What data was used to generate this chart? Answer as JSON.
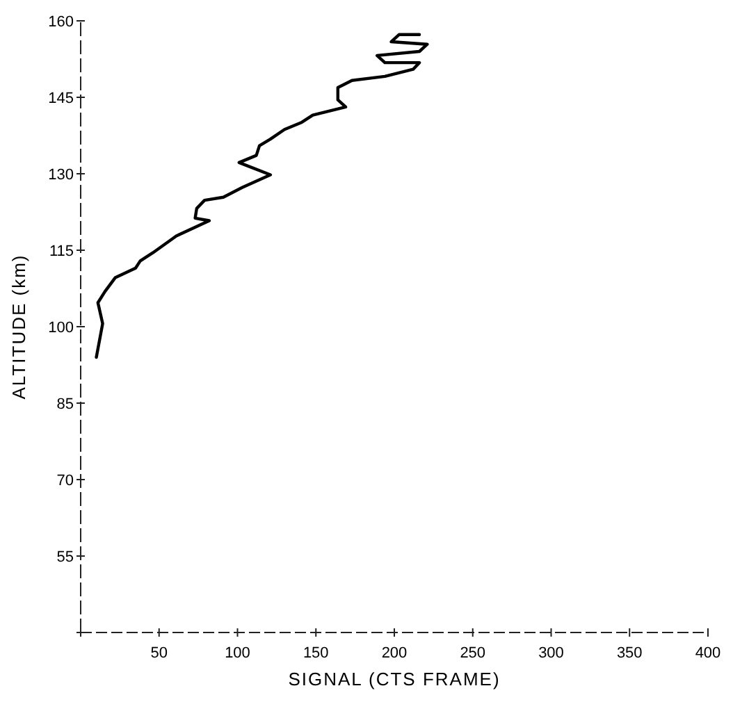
{
  "chart_data": {
    "type": "line",
    "xlabel": "SIGNAL (CTS FRAME)",
    "ylabel": "ALTITUDE (km)",
    "xlim": [
      0,
      400
    ],
    "ylim": [
      40,
      160
    ],
    "xticks": [
      {
        "value": 0,
        "label": null
      },
      50,
      100,
      150,
      200,
      250,
      300,
      350,
      400
    ],
    "yticks": [
      {
        "value": 40,
        "label": null
      },
      55,
      70,
      85,
      100,
      115,
      130,
      145,
      160
    ],
    "grid": false,
    "marker": "none",
    "line_style": "solid",
    "series": [
      {
        "color": "#000000",
        "x": [
          10,
          14,
          11,
          15.5,
          22,
          35,
          38,
          46,
          61,
          82,
          73,
          74,
          79,
          91,
          103,
          121,
          101,
          112,
          114,
          121,
          130,
          141,
          148,
          169,
          164,
          164,
          173,
          194,
          212,
          216,
          194,
          189,
          216,
          221,
          198,
          203,
          216
        ],
        "values": [
          94,
          100.6,
          104.7,
          106.9,
          109.6,
          111.5,
          112.9,
          114.5,
          117.8,
          120.8,
          121.3,
          123.2,
          124.8,
          125.4,
          127.3,
          129.8,
          132.2,
          133.6,
          135.5,
          136.8,
          138.7,
          140.1,
          141.5,
          143.1,
          144.5,
          146.9,
          148.3,
          149.1,
          150.5,
          151.8,
          151.8,
          153.2,
          154,
          155.4,
          155.9,
          157.3,
          157.3
        ]
      }
    ]
  }
}
